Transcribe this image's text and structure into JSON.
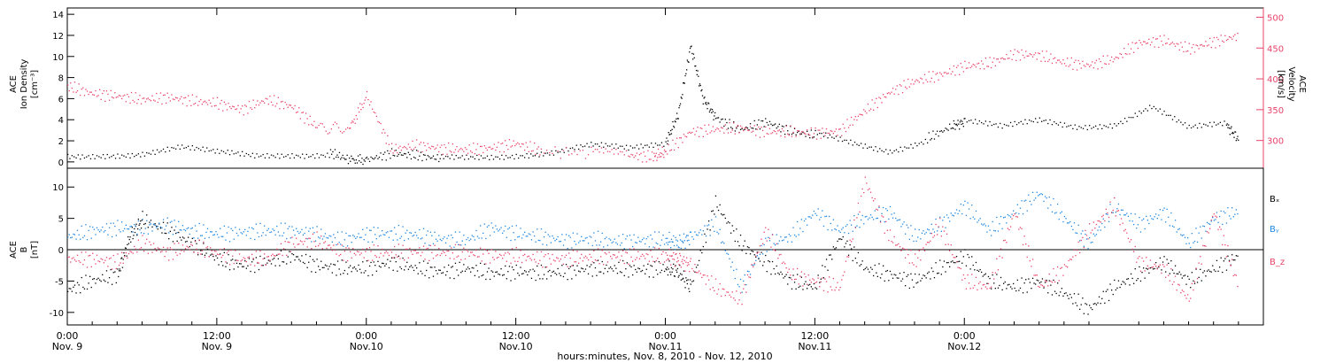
{
  "colors": {
    "black": "#000000",
    "red": "#e8436a",
    "blue": "#1f87e0"
  },
  "chart_data": [
    {
      "type": "scatter",
      "panel": "plasma",
      "left_axis_label": [
        "ACE",
        "Ion Density",
        "[cm⁻³]"
      ],
      "right_axis_label": [
        "ACE",
        "Velocity",
        "[km/s]"
      ],
      "xlim_hours": [
        0,
        96
      ],
      "ylim_left": [
        -0.6,
        14.6
      ],
      "left_ticks": [
        "0",
        "2",
        "4",
        "6",
        "8",
        "10",
        "12",
        "14"
      ],
      "ylim_right": [
        255,
        515
      ],
      "right_ticks": [
        "300",
        "350",
        "400",
        "450",
        "500"
      ],
      "series": [
        {
          "color": "black",
          "axis": "left",
          "hours": [
            0,
            3,
            6,
            9,
            12,
            15,
            18,
            21,
            22.6,
            24,
            26,
            28,
            30,
            33,
            36,
            39,
            42,
            45,
            48,
            49,
            50,
            51,
            52,
            54,
            56,
            58,
            60,
            63,
            66,
            69,
            71,
            72,
            75,
            78,
            81,
            84,
            87,
            90,
            93,
            94
          ],
          "values": [
            0.5,
            0.8,
            0.9,
            1.3,
            0.7,
            0.5,
            0.8,
            0.9,
            0.2,
            0.2,
            0.8,
            0.6,
            0.3,
            0.6,
            0.8,
            0.9,
            1.4,
            1.1,
            1.8,
            4.5,
            11,
            6,
            4.2,
            3,
            3.8,
            2.9,
            2.5,
            1.8,
            1.2,
            2.2,
            3.4,
            3.8,
            3.1,
            3.9,
            3.5,
            3.7,
            5.2,
            3,
            3.5,
            2.1
          ]
        },
        {
          "color": "red",
          "axis": "right",
          "hours": [
            0,
            2,
            4,
            6,
            8,
            10,
            12,
            14,
            16,
            18,
            20,
            22.6,
            24,
            26,
            28,
            30,
            32,
            34,
            36,
            38,
            42,
            45,
            47,
            48,
            50,
            52,
            54,
            56,
            58,
            60,
            62,
            64,
            66,
            68,
            70,
            72,
            74,
            76,
            78,
            80,
            82,
            84,
            86,
            88,
            90,
            92,
            94
          ],
          "values": [
            388,
            376,
            372,
            366,
            370,
            364,
            360,
            350,
            366,
            355,
            322,
            318,
            372,
            285,
            292,
            287,
            285,
            288,
            295,
            283,
            279,
            276,
            273,
            282,
            314,
            318,
            320,
            314,
            314,
            312,
            315,
            348,
            378,
            396,
            406,
            420,
            425,
            440,
            438,
            426,
            422,
            432,
            458,
            462,
            448,
            460,
            470
          ]
        }
      ]
    },
    {
      "type": "scatter",
      "panel": "magnetic-field",
      "left_axis_label": [
        "ACE",
        "B",
        "[nT]"
      ],
      "xlim_hours": [
        0,
        96
      ],
      "ylim": [
        -12,
        13
      ],
      "ticks": [
        "-10",
        "-5",
        "0",
        "5",
        "10"
      ],
      "legend": [
        "Bₓ",
        "Bᵧ",
        "B_z"
      ],
      "series": [
        {
          "color": "black",
          "legend_label": "Bₓ",
          "hours": [
            0,
            2,
            4,
            5,
            6,
            8,
            10,
            12,
            14,
            16,
            18,
            20,
            22,
            24,
            26,
            28,
            30,
            32,
            34,
            36,
            38,
            40,
            42,
            44,
            46,
            48,
            49,
            50,
            52,
            54,
            56,
            58,
            60,
            62,
            64,
            66,
            68,
            70,
            72,
            74,
            76,
            78,
            80,
            82,
            84,
            86,
            88,
            90,
            92,
            94
          ],
          "values": [
            -6.5,
            -5,
            -4,
            2,
            4.8,
            3,
            1,
            -1.5,
            -2.5,
            -2,
            -1,
            -2.5,
            -3,
            -3,
            -2,
            -3,
            -3.5,
            -3,
            -3.8,
            -3.5,
            -3.8,
            -3.5,
            -3,
            -3,
            -3.2,
            -3,
            -3.5,
            -6,
            7.5,
            1,
            -2,
            -5,
            -6,
            2,
            -3,
            -4,
            -5,
            -3,
            -1,
            -5,
            -6,
            -5,
            -7,
            -9.5,
            -6,
            -4,
            -2,
            -5,
            -3,
            -1
          ]
        },
        {
          "color": "blue",
          "legend_label": "Bᵧ",
          "hours": [
            0,
            2,
            4,
            6,
            8,
            10,
            12,
            14,
            16,
            18,
            20,
            22,
            24,
            26,
            28,
            30,
            32,
            34,
            36,
            38,
            40,
            42,
            44,
            46,
            48,
            49,
            50,
            52,
            54,
            56,
            58,
            60,
            62,
            64,
            66,
            68,
            70,
            72,
            74,
            76,
            78,
            80,
            82,
            84,
            86,
            88,
            90,
            92,
            94
          ],
          "values": [
            2,
            3,
            3.5,
            3.5,
            4,
            3,
            2.5,
            2.8,
            3,
            3,
            2.5,
            1.5,
            2.5,
            2.6,
            2.4,
            1.7,
            1.5,
            3.5,
            2.6,
            2,
            1.5,
            1.7,
            1.3,
            1.5,
            1.6,
            1,
            2,
            4,
            -6,
            1,
            2,
            6,
            3,
            5,
            6,
            2,
            4,
            7,
            3,
            6,
            9,
            5,
            1,
            7,
            4,
            6,
            1,
            5,
            6
          ]
        },
        {
          "color": "red",
          "legend_label": "B_z",
          "hours": [
            0,
            2,
            4,
            6,
            8,
            10,
            12,
            14,
            16,
            18,
            20,
            22,
            24,
            26,
            28,
            30,
            32,
            34,
            36,
            38,
            40,
            42,
            44,
            46,
            48,
            49,
            50,
            52,
            54,
            56,
            58,
            60,
            62,
            64,
            66,
            68,
            70,
            72,
            74,
            76,
            78,
            80,
            82,
            84,
            86,
            88,
            90,
            92,
            94
          ],
          "values": [
            -1.5,
            -1.5,
            -2,
            1,
            -0.5,
            0.5,
            -0.5,
            -1.5,
            -1.5,
            1,
            1.5,
            -0.5,
            -0.5,
            -0.5,
            -0.3,
            -0.5,
            -0.5,
            -1,
            -1,
            -1.5,
            -1.5,
            -1.2,
            -1,
            -1,
            -1,
            -1.5,
            -2.5,
            -6,
            -8,
            3,
            -4,
            -5,
            -6,
            11,
            2,
            -2,
            4,
            -5,
            -6,
            6,
            -6,
            -3,
            3,
            7,
            -2,
            -3,
            -8,
            6,
            -6
          ]
        }
      ]
    }
  ],
  "x_axis": {
    "ticks": [
      {
        "hours": 0,
        "top": "0:00",
        "bottom": "Nov. 9"
      },
      {
        "hours": 12,
        "top": "12:00",
        "bottom": "Nov. 9"
      },
      {
        "hours": 24,
        "top": "0:00",
        "bottom": "Nov.10"
      },
      {
        "hours": 36,
        "top": "12:00",
        "bottom": "Nov.10"
      },
      {
        "hours": 48,
        "top": "0:00",
        "bottom": "Nov.11"
      },
      {
        "hours": 60,
        "top": "12:00",
        "bottom": "Nov.11"
      },
      {
        "hours": 72,
        "top": "0:00",
        "bottom": "Nov.12"
      }
    ],
    "label": "hours:minutes, Nov.  8, 2010 - Nov. 12, 2010"
  }
}
